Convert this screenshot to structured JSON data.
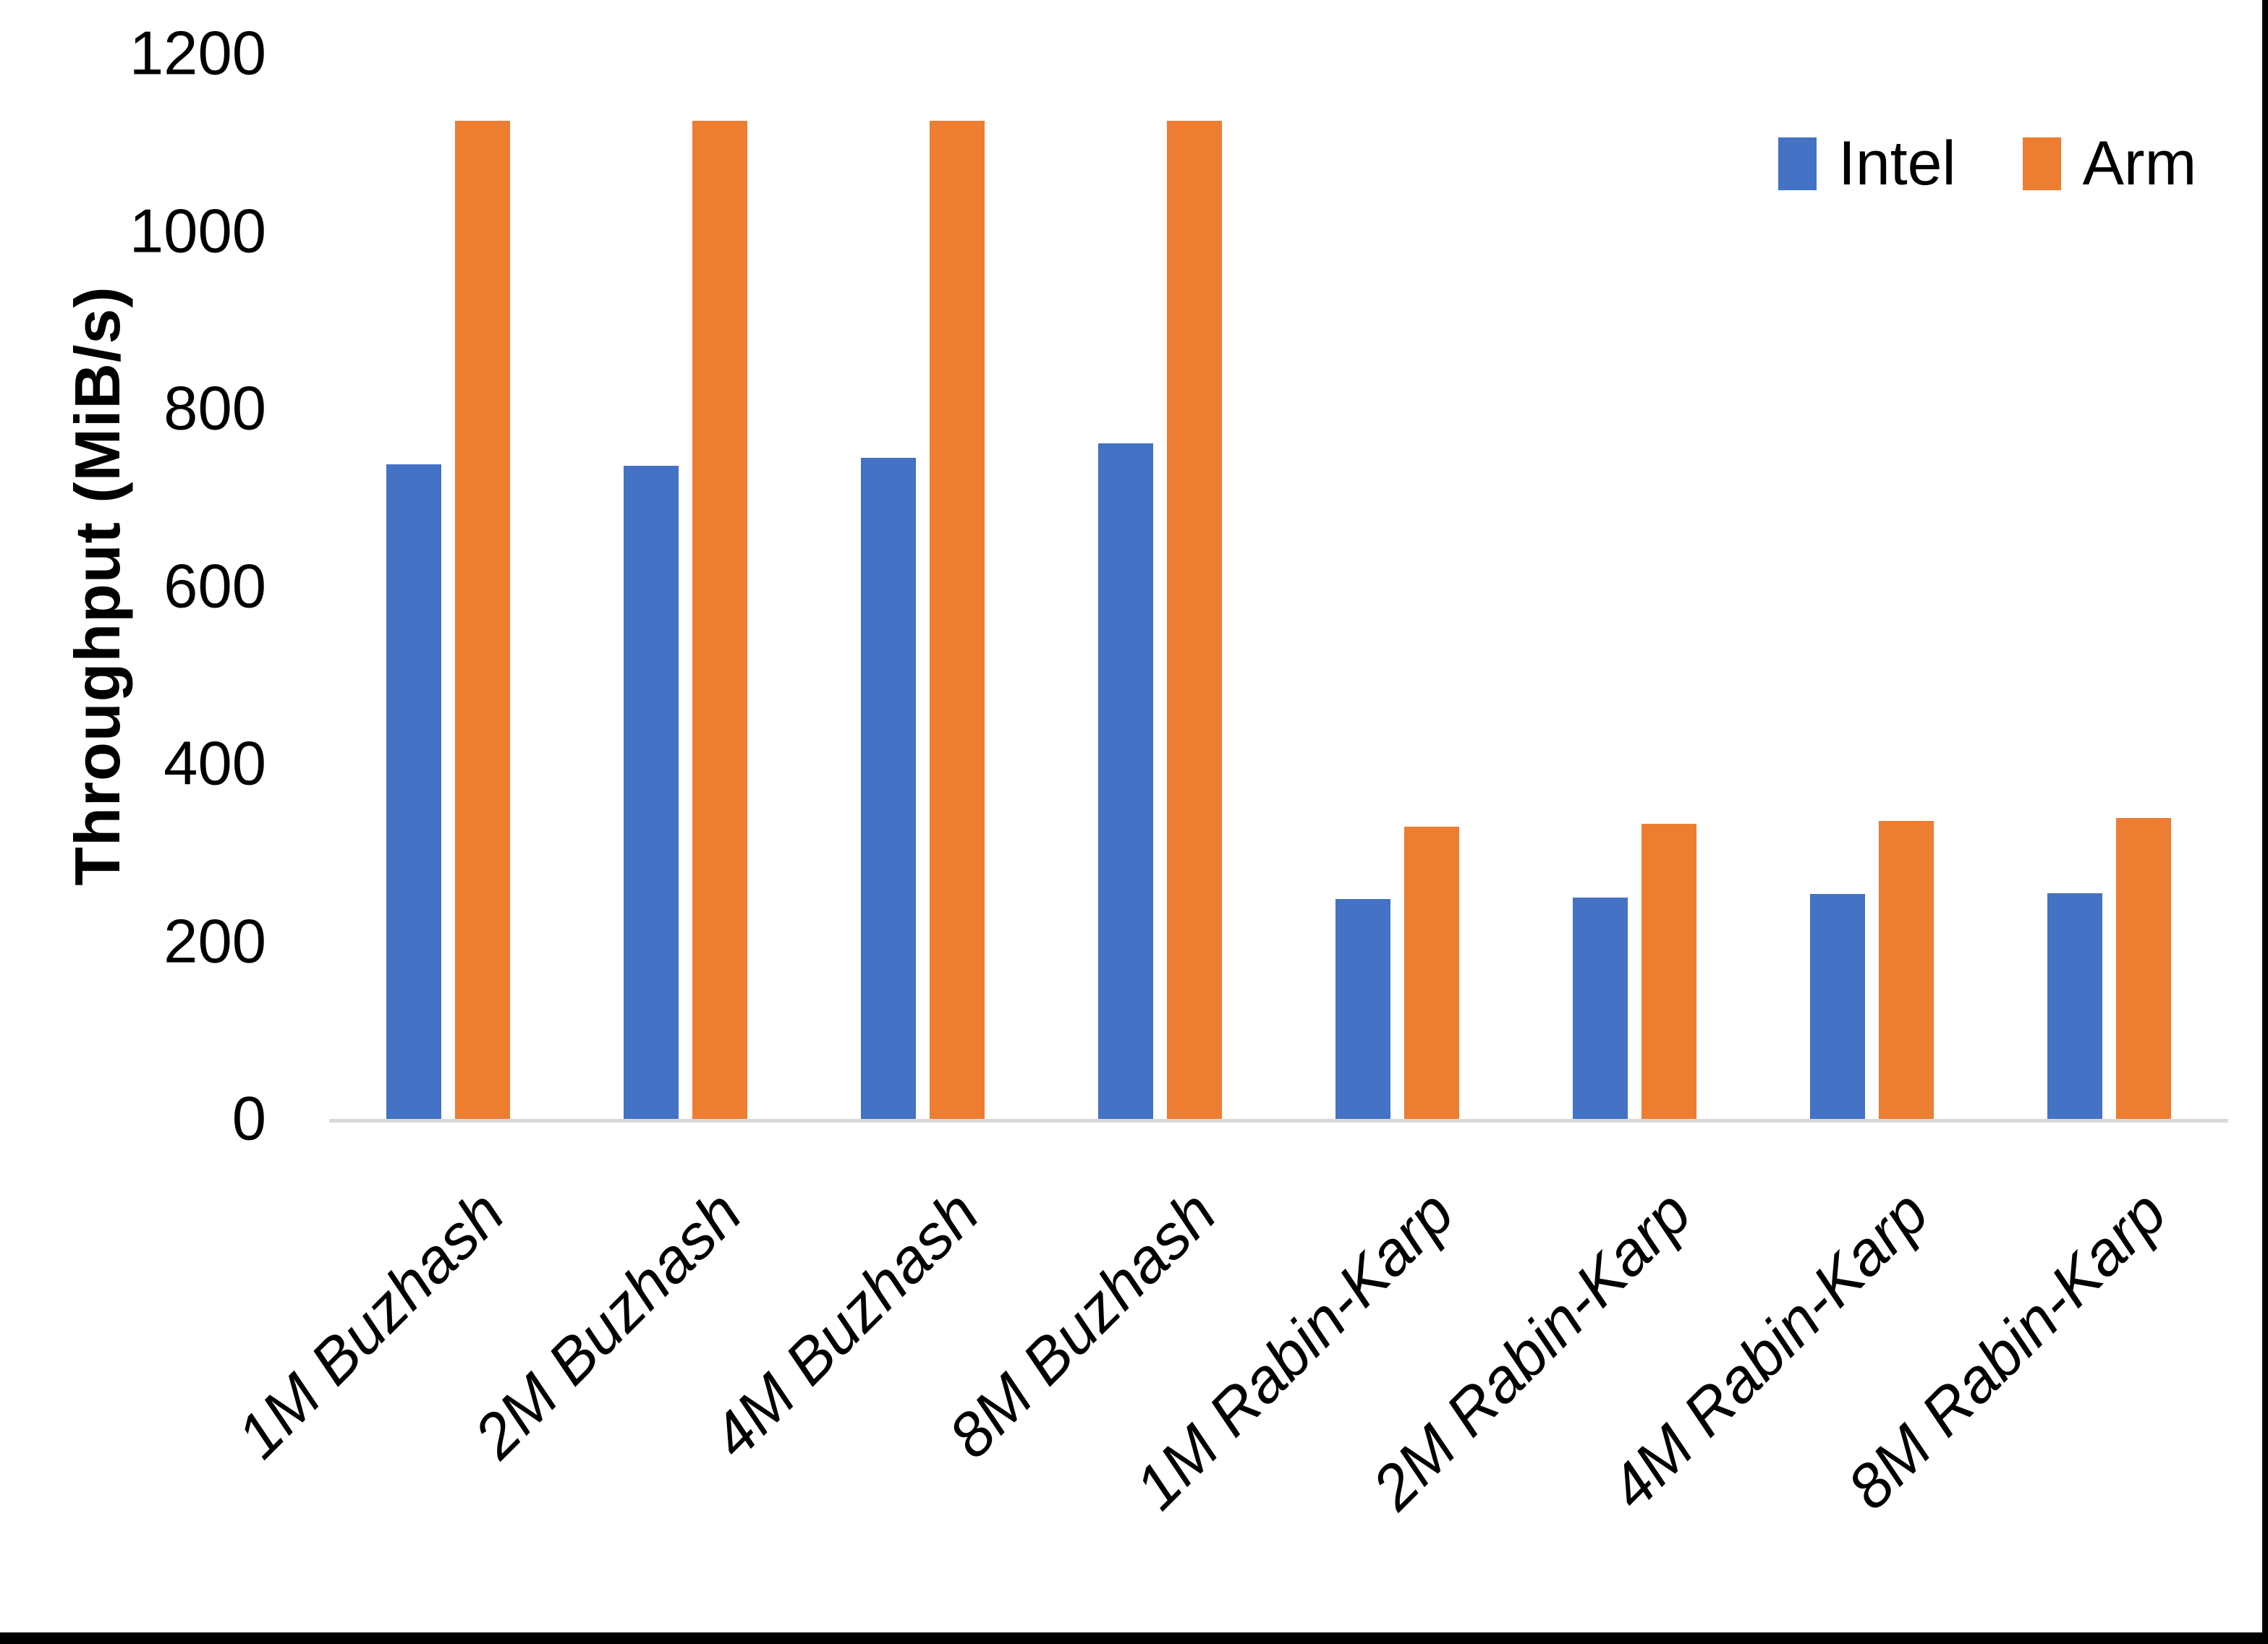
{
  "chart_data": {
    "type": "bar",
    "title": "",
    "xlabel": "",
    "ylabel": "Throughput (MiB/s)",
    "ylim": [
      0,
      1200
    ],
    "yticks": [
      0,
      200,
      400,
      600,
      800,
      1000,
      1200
    ],
    "grid": false,
    "legend_position": "top-right",
    "categories": [
      "1M Buzhash",
      "2M Buzhash",
      "4M Buzhash",
      "8M Buzhash",
      "1M Rabin-Karp",
      "2M Rabin-Karp",
      "4M Rabin-Karp",
      "8M Rabin-Karp"
    ],
    "series": [
      {
        "name": "Intel",
        "color": "#4472C4",
        "values": [
          737,
          736,
          745,
          761,
          248,
          249,
          253,
          254
        ]
      },
      {
        "name": "Arm",
        "color": "#ED7D31",
        "values": [
          1124,
          1124,
          1124,
          1124,
          329,
          332,
          336,
          339
        ]
      }
    ]
  },
  "colors": {
    "axis_line": "#D9D9D9",
    "text": "#000000",
    "page_edge": "#000000"
  }
}
